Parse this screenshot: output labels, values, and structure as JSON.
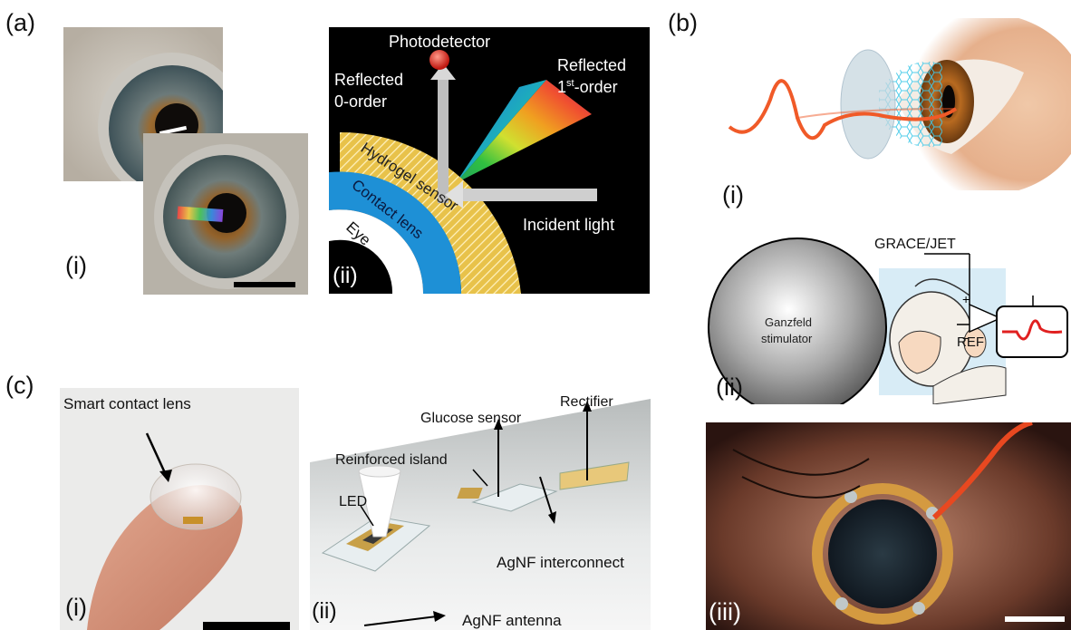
{
  "panels": {
    "a": {
      "label": "(a)",
      "i": {
        "label": "(i)"
      },
      "ii": {
        "label": "(ii)",
        "photodetector": "Photodetector",
        "reflected_0_line1": "Reflected",
        "reflected_0_line2": "0-order",
        "reflected_1_line1": "Reflected",
        "reflected_1_line2_pre": "1",
        "reflected_1_line2_sup": "st",
        "reflected_1_line2_post": "-order",
        "incident": "Incident light",
        "hydrogel": "Hydrogel sensor",
        "contact": "Contact lens",
        "eye": "Eye"
      }
    },
    "b": {
      "label": "(b)",
      "i": {
        "label": "(i)"
      },
      "ii": {
        "label": "(ii)",
        "grace": "GRACE/JET",
        "ganzfeld_line1": "Ganzfeld",
        "ganzfeld_line2": "stimulator",
        "ref": "REF",
        "plus": "+",
        "minus": "−"
      },
      "iii": {
        "label": "(iii)"
      }
    },
    "c": {
      "label": "(c)",
      "i": {
        "label": "(i)",
        "smart_lens": "Smart contact lens"
      },
      "ii": {
        "label": "(ii)",
        "glucose": "Glucose sensor",
        "rectifier": "Rectifier",
        "island": "Reinforced island",
        "led": "LED",
        "interconnect": "AgNF interconnect",
        "antenna": "AgNF antenna"
      }
    }
  },
  "colors": {
    "panel_dark": "#000000",
    "lens_blue": "#1e90d6",
    "hydrogel_yellow": "#e8c24a",
    "red_dot": "#e0302a",
    "signal_orange": "#f05a28",
    "erg_red": "#e02020"
  }
}
